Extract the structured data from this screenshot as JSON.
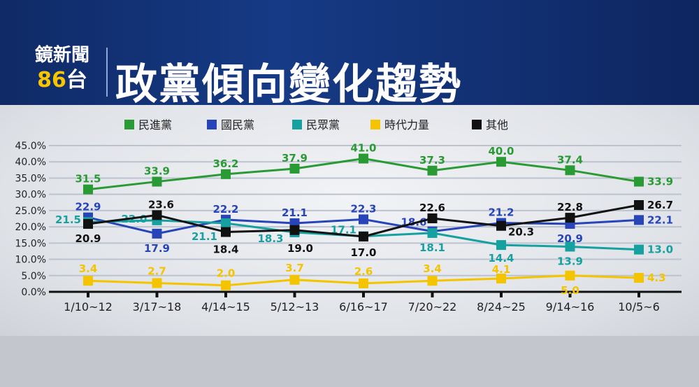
{
  "header": {
    "logo_line1": "鏡新聞",
    "logo_num": "86",
    "logo_suffix": "台",
    "title": "政黨傾向變化趨勢"
  },
  "chart_data": {
    "type": "line",
    "title": "政黨傾向變化趨勢",
    "categories": [
      "1/10~12",
      "3/17~18",
      "4/14~15",
      "5/12~13",
      "6/16~17",
      "7/20~22",
      "8/24~25",
      "9/14~16",
      "10/5~6"
    ],
    "ylim": [
      0,
      45
    ],
    "yticks": [
      "0.0%",
      "5.0%",
      "10.0%",
      "15.0%",
      "20.0%",
      "25.0%",
      "30.0%",
      "35.0%",
      "40.0%",
      "45.0%"
    ],
    "grid": true,
    "legend_position": "top",
    "series": [
      {
        "name": "民進黨",
        "color": "#2a9a35",
        "values": [
          31.5,
          33.9,
          36.2,
          37.9,
          41.0,
          37.3,
          40.0,
          37.4,
          33.9
        ],
        "labels": [
          "31.5",
          "33.9",
          "36.2",
          "37.9",
          "41.0",
          "37.3",
          "40.0",
          "37.4",
          "33.9"
        ]
      },
      {
        "name": "國民黨",
        "color": "#2744b8",
        "values": [
          22.9,
          17.9,
          22.2,
          21.1,
          22.3,
          18.6,
          21.2,
          20.9,
          22.1
        ],
        "labels": [
          "22.9",
          "17.9",
          "22.2",
          "21.1",
          "22.3",
          "18.6",
          "21.2",
          "20.9",
          "22.1"
        ]
      },
      {
        "name": "民眾黨",
        "color": "#17a0a0",
        "values": [
          21.5,
          22.0,
          21.1,
          18.3,
          17.1,
          18.1,
          14.4,
          13.9,
          13.0
        ],
        "labels": [
          "21.5",
          "22.0",
          "21.1",
          "18.3",
          "17.1",
          "18.1",
          "14.4",
          "13.9",
          "13.0"
        ]
      },
      {
        "name": "時代力量",
        "color": "#f5c400",
        "values": [
          3.4,
          2.7,
          2.0,
          3.7,
          2.6,
          3.4,
          4.1,
          5.0,
          4.3
        ],
        "labels": [
          "3.4",
          "2.7",
          "2.0",
          "3.7",
          "2.6",
          "3.4",
          "4.1",
          "5.0",
          "4.3"
        ]
      },
      {
        "name": "其他",
        "color": "#111111",
        "values": [
          20.9,
          23.6,
          18.4,
          19.0,
          17.0,
          22.6,
          20.3,
          22.8,
          26.7
        ],
        "labels": [
          "20.9",
          "23.6",
          "18.4",
          "19.0",
          "17.0",
          "22.6",
          "20.3",
          "22.8",
          "26.7"
        ]
      }
    ]
  }
}
